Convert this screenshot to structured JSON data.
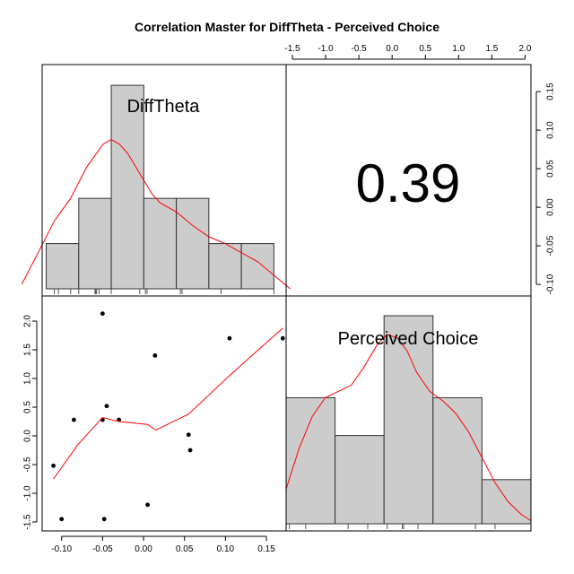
{
  "title": "Correlation Master for DiffTheta - Perceived Choice",
  "correlation_label": "0.39",
  "chart_data": [
    {
      "type": "bar",
      "panel": "diagonal-1",
      "label": "DiffTheta",
      "bins": [
        {
          "start": -0.11,
          "end": -0.07,
          "height": 1
        },
        {
          "start": -0.07,
          "end": -0.03,
          "height": 2
        },
        {
          "start": -0.03,
          "end": 0.01,
          "height": 4.5
        },
        {
          "start": 0.01,
          "end": 0.05,
          "height": 2
        },
        {
          "start": 0.05,
          "end": 0.09,
          "height": 2
        },
        {
          "start": 0.09,
          "end": 0.13,
          "height": 1
        },
        {
          "start": 0.13,
          "end": 0.17,
          "height": 1
        }
      ],
      "density": [
        [
          -0.14,
          0.1
        ],
        [
          -0.12,
          0.8
        ],
        [
          -0.1,
          1.5
        ],
        [
          -0.08,
          2.0
        ],
        [
          -0.06,
          2.7
        ],
        [
          -0.04,
          3.2
        ],
        [
          -0.03,
          3.3
        ],
        [
          -0.02,
          3.2
        ],
        [
          -0.01,
          3.0
        ],
        [
          0.0,
          2.7
        ],
        [
          0.01,
          2.4
        ],
        [
          0.02,
          2.1
        ],
        [
          0.03,
          1.9
        ],
        [
          0.05,
          1.7
        ],
        [
          0.07,
          1.4
        ],
        [
          0.09,
          1.15
        ],
        [
          0.11,
          1.0
        ],
        [
          0.13,
          0.8
        ],
        [
          0.15,
          0.6
        ],
        [
          0.17,
          0.3
        ],
        [
          0.19,
          0.0
        ]
      ],
      "rug": [
        -0.1,
        -0.095,
        -0.08,
        -0.07,
        -0.05,
        -0.049,
        -0.048,
        -0.045,
        -0.03,
        0.005,
        0.012,
        0.014,
        0.055,
        0.057,
        0.105,
        0.17
      ],
      "xlim": [
        -0.115,
        0.185
      ],
      "ylim": [
        0,
        4.8
      ]
    },
    {
      "type": "bar",
      "panel": "diagonal-2",
      "label": "Perceived Choice",
      "bins": [
        {
          "start": -1.5,
          "end": -0.75,
          "height": 2
        },
        {
          "start": -0.75,
          "end": 0.0,
          "height": 1.4
        },
        {
          "start": 0.0,
          "end": 0.75,
          "height": 3.3
        },
        {
          "start": 0.75,
          "end": 1.5,
          "height": 2
        },
        {
          "start": 1.5,
          "end": 2.25,
          "height": 0.7
        }
      ],
      "density": [
        [
          -1.5,
          0.55
        ],
        [
          -1.3,
          1.2
        ],
        [
          -1.1,
          1.7
        ],
        [
          -0.9,
          2.0
        ],
        [
          -0.7,
          2.1
        ],
        [
          -0.5,
          2.2
        ],
        [
          -0.3,
          2.5
        ],
        [
          -0.1,
          2.85
        ],
        [
          0.05,
          3.0
        ],
        [
          0.2,
          2.95
        ],
        [
          0.35,
          2.75
        ],
        [
          0.5,
          2.4
        ],
        [
          0.7,
          2.1
        ],
        [
          0.9,
          1.95
        ],
        [
          1.1,
          1.75
        ],
        [
          1.3,
          1.45
        ],
        [
          1.5,
          1.05
        ],
        [
          1.7,
          0.65
        ],
        [
          1.9,
          0.35
        ],
        [
          2.1,
          0.15
        ],
        [
          2.25,
          0.05
        ]
      ],
      "rug": [
        -1.45,
        -1.2,
        -0.55,
        -0.25,
        0.05,
        0.28,
        0.3,
        0.52,
        1.4,
        1.7
      ],
      "xlim": [
        -1.5,
        2.25
      ],
      "ylim": [
        0,
        3.5
      ]
    },
    {
      "type": "scatter",
      "panel": "lower",
      "x": [
        -0.11,
        -0.1,
        -0.085,
        -0.05,
        -0.05,
        -0.048,
        -0.045,
        -0.03,
        0.005,
        0.014,
        0.055,
        0.057,
        0.105,
        0.17
      ],
      "y": [
        -0.52,
        -1.45,
        0.28,
        2.13,
        0.28,
        -1.45,
        0.52,
        0.28,
        -1.2,
        1.4,
        0.02,
        -0.25,
        1.7,
        1.7
      ],
      "smooth": [
        [
          -0.11,
          -0.75
        ],
        [
          -0.08,
          -0.15
        ],
        [
          -0.05,
          0.32
        ],
        [
          -0.03,
          0.25
        ],
        [
          0.005,
          0.2
        ],
        [
          0.015,
          0.1
        ],
        [
          0.055,
          0.38
        ],
        [
          0.105,
          1.05
        ],
        [
          0.17,
          1.88
        ]
      ],
      "xlim": [
        -0.115,
        0.185
      ],
      "ylim": [
        -1.5,
        2.25
      ],
      "x_ticks": [
        -0.1,
        -0.05,
        0.0,
        0.05,
        0.1,
        0.15
      ],
      "x_tick_labels": [
        "-0.10",
        "-0.05",
        "0.00",
        "0.05",
        "0.10",
        "0.15"
      ],
      "y_ticks": [
        -1.5,
        -1.0,
        -0.5,
        0.0,
        0.5,
        1.0,
        1.5,
        2.0
      ],
      "y_tick_labels": [
        "-1.5",
        "-1.0",
        "-0.5",
        "0.0",
        "0.5",
        "1.0",
        "1.5",
        "2.0"
      ]
    }
  ],
  "top_axis": {
    "ticks": [
      -1.5,
      -1.0,
      -0.5,
      0.0,
      0.5,
      1.0,
      1.5,
      2.0
    ],
    "labels": [
      "-1.5",
      "-1.0",
      "-0.5",
      "0.0",
      "0.5",
      "1.0",
      "1.5",
      "2.0"
    ]
  },
  "right_axis": {
    "ticks": [
      -0.1,
      -0.05,
      0.0,
      0.05,
      0.1,
      0.15
    ],
    "labels": [
      "-0.10",
      "-0.05",
      "0.00",
      "0.05",
      "0.10",
      "0.15"
    ]
  }
}
